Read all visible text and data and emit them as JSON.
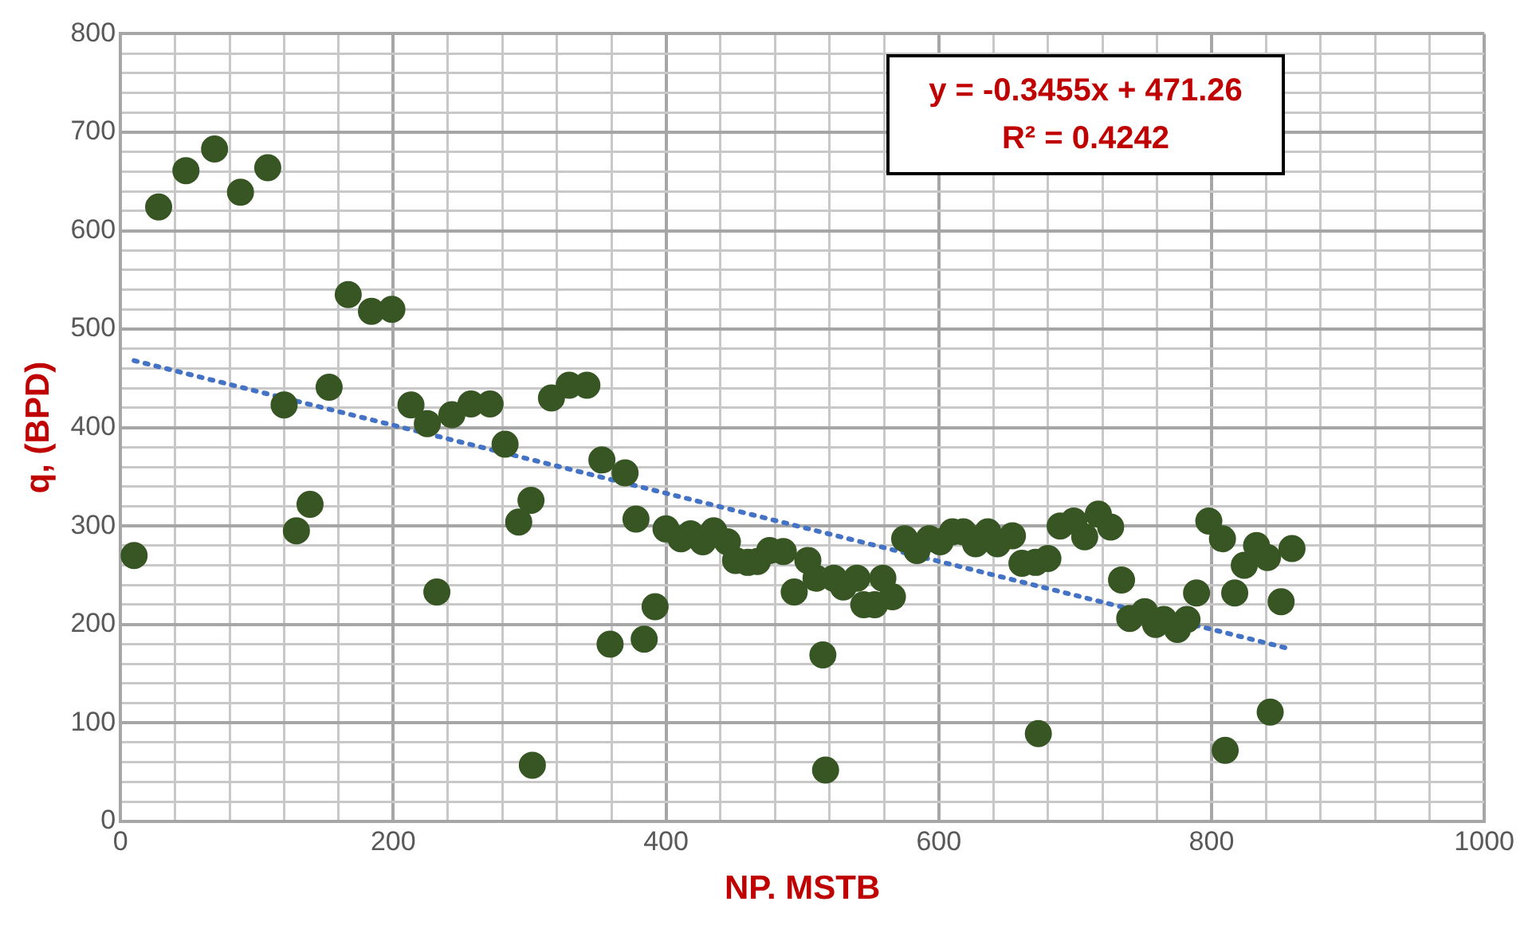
{
  "chart_data": {
    "type": "scatter",
    "xlabel": "NP. MSTB",
    "ylabel": "q, (BPD)",
    "annotations": [
      "y = -0.3455x + 471.26",
      "R² = 0.4242"
    ],
    "xlim": [
      0,
      1000
    ],
    "ylim": [
      0,
      800
    ],
    "xticks": [
      0,
      {
        "value": 40,
        "label": null
      },
      {
        "value": 80,
        "label": null
      },
      {
        "value": 120,
        "label": null
      },
      {
        "value": 160,
        "label": null
      },
      200,
      {
        "value": 240,
        "label": null
      },
      {
        "value": 280,
        "label": null
      },
      {
        "value": 320,
        "label": null
      },
      {
        "value": 360,
        "label": null
      },
      400,
      {
        "value": 440,
        "label": null
      },
      {
        "value": 480,
        "label": null
      },
      {
        "value": 520,
        "label": null
      },
      {
        "value": 560,
        "label": null
      },
      600,
      {
        "value": 640,
        "label": null
      },
      {
        "value": 680,
        "label": null
      },
      {
        "value": 720,
        "label": null
      },
      {
        "value": 760,
        "label": null
      },
      800,
      {
        "value": 840,
        "label": null
      },
      {
        "value": 880,
        "label": null
      },
      {
        "value": 920,
        "label": null
      },
      {
        "value": 960,
        "label": null
      },
      1000
    ],
    "yticks": [
      0,
      {
        "value": 20,
        "label": null
      },
      {
        "value": 40,
        "label": null
      },
      {
        "value": 60,
        "label": null
      },
      {
        "value": 80,
        "label": null
      },
      100,
      {
        "value": 120,
        "label": null
      },
      {
        "value": 140,
        "label": null
      },
      {
        "value": 160,
        "label": null
      },
      {
        "value": 180,
        "label": null
      },
      200,
      {
        "value": 220,
        "label": null
      },
      {
        "value": 240,
        "label": null
      },
      {
        "value": 260,
        "label": null
      },
      {
        "value": 280,
        "label": null
      },
      300,
      {
        "value": 320,
        "label": null
      },
      {
        "value": 340,
        "label": null
      },
      {
        "value": 360,
        "label": null
      },
      {
        "value": 380,
        "label": null
      },
      400,
      {
        "value": 420,
        "label": null
      },
      {
        "value": 440,
        "label": null
      },
      {
        "value": 460,
        "label": null
      },
      {
        "value": 480,
        "label": null
      },
      500,
      {
        "value": 520,
        "label": null
      },
      {
        "value": 540,
        "label": null
      },
      {
        "value": 560,
        "label": null
      },
      {
        "value": 580,
        "label": null
      },
      600,
      {
        "value": 620,
        "label": null
      },
      {
        "value": 640,
        "label": null
      },
      {
        "value": 660,
        "label": null
      },
      {
        "value": 680,
        "label": null
      },
      700,
      {
        "value": 720,
        "label": null
      },
      {
        "value": 740,
        "label": null
      },
      {
        "value": 760,
        "label": null
      },
      {
        "value": 780,
        "label": null
      },
      800
    ],
    "grid": true,
    "legend": false,
    "series": [
      {
        "type": "scatter",
        "marker": "circle",
        "color": "#375623",
        "x": [
          10,
          28,
          48,
          69,
          88,
          108,
          120,
          129,
          139,
          153,
          167,
          184,
          199,
          213,
          225,
          232,
          243,
          257,
          271,
          282,
          292,
          301,
          302,
          316,
          329,
          342,
          353,
          359,
          370,
          378,
          384,
          392,
          400,
          411,
          418,
          427,
          435,
          445,
          451,
          460,
          467,
          476,
          486,
          494,
          504,
          510,
          515,
          517,
          523,
          530,
          540,
          545,
          553,
          559,
          566,
          575,
          584,
          593,
          601,
          610,
          618,
          627,
          636,
          643,
          654,
          661,
          671,
          673,
          680,
          689,
          699,
          707,
          717,
          726,
          734,
          740,
          751,
          759,
          765,
          775,
          782,
          789,
          798,
          808,
          810,
          817,
          824,
          833,
          841,
          843,
          851,
          859
        ],
        "values": [
          270,
          624,
          661,
          683,
          639,
          664,
          423,
          295,
          322,
          441,
          535,
          518,
          520,
          423,
          404,
          233,
          413,
          424,
          424,
          383,
          304,
          326,
          57,
          430,
          443,
          443,
          367,
          180,
          354,
          307,
          185,
          218,
          297,
          287,
          292,
          284,
          295,
          284,
          265,
          263,
          264,
          275,
          274,
          233,
          265,
          247,
          169,
          52,
          247,
          238,
          247,
          220,
          220,
          247,
          228,
          287,
          275,
          287,
          284,
          294,
          294,
          282,
          294,
          282,
          290,
          262,
          263,
          89,
          267,
          300,
          305,
          289,
          312,
          299,
          245,
          206,
          213,
          200,
          205,
          195,
          205,
          232,
          305,
          287,
          72,
          232,
          260,
          280,
          268,
          111,
          223,
          277
        ]
      },
      {
        "type": "line",
        "marker": "none",
        "line_style": "dotted",
        "color": "#4472c4",
        "x": [
          10,
          855
        ],
        "values": [
          468,
          176
        ]
      }
    ]
  }
}
